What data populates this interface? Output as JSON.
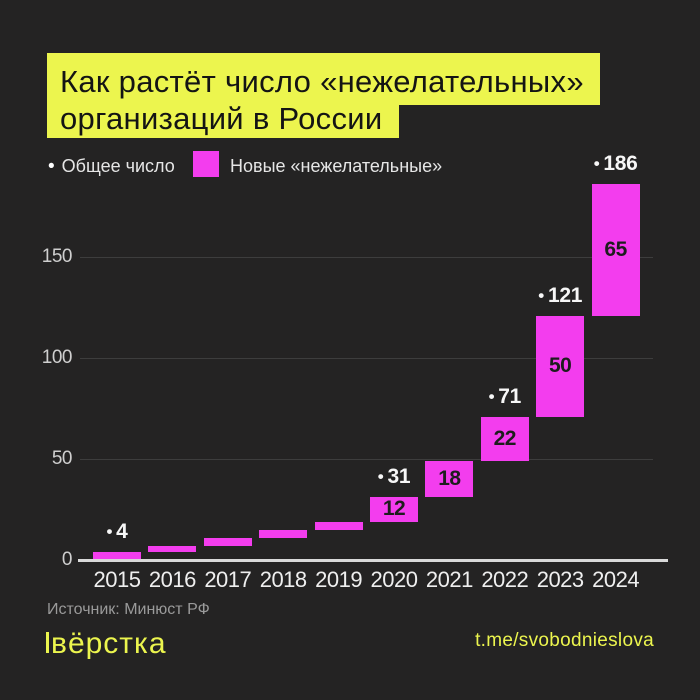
{
  "header": {
    "title_line1": "Как растёт число «нежелательных»",
    "title_line2": "организаций в России"
  },
  "legend": {
    "bullet": "•",
    "total_label": "Общее число",
    "new_label": "Новые «нежелательные»"
  },
  "footer": {
    "source": "Источник: Минюст РФ",
    "logo": "вёрстка",
    "handle": "t.me/svobodnieslova"
  },
  "colors": {
    "background": "#242323",
    "accent_yellow": "#ecf54e",
    "bar_magenta": "#f33dee",
    "grid": "#3d3d3d",
    "axis": "#d9d9d9"
  },
  "chart_data": {
    "type": "bar",
    "subtype": "waterfall",
    "title": "Как растёт число «нежелательных» организаций в России",
    "categories": [
      "2015",
      "2016",
      "2017",
      "2018",
      "2019",
      "2020",
      "2021",
      "2022",
      "2023",
      "2024"
    ],
    "series": [
      {
        "name": "Новые «нежелательные»",
        "values": [
          4,
          3,
          4,
          4,
          4,
          12,
          18,
          22,
          50,
          65
        ]
      },
      {
        "name": "Общее число",
        "values": [
          4,
          7,
          11,
          15,
          19,
          31,
          49,
          71,
          121,
          186
        ]
      }
    ],
    "bar_labels": [
      "",
      "",
      "",
      "",
      "",
      "12",
      "18",
      "22",
      "50",
      "65"
    ],
    "total_labels": [
      "4",
      "",
      "",
      "",
      "",
      "31",
      "",
      "71",
      "121",
      "186"
    ],
    "total_label_bullet": "•",
    "xlabel": "",
    "ylabel": "",
    "yticks": [
      0,
      50,
      100,
      150
    ],
    "ylim": [
      0,
      190
    ],
    "grid": true,
    "legend_position": "top-left",
    "bar_color": "#f33dee"
  }
}
